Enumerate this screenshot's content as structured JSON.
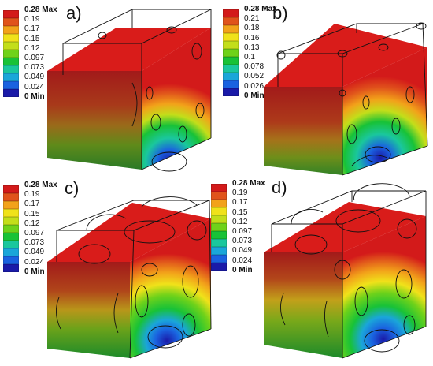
{
  "colors": {
    "top_face": "#d91c1a",
    "scale_colors": [
      "#d31a1a",
      "#e0531b",
      "#f2a21a",
      "#f0e21a",
      "#c3de1a",
      "#6fd21a",
      "#18c237",
      "#1ac79d",
      "#1aa6d9",
      "#1a62e0",
      "#1a1aa8"
    ]
  },
  "panels": [
    {
      "letter": "a)",
      "legend": {
        "max_label": "0.28 Max",
        "values": [
          "0.19",
          "0.17",
          "0.15",
          "0.12",
          "0.097",
          "0.073",
          "0.049",
          "0.024"
        ],
        "min_label": "0 Min"
      }
    },
    {
      "letter": "b)",
      "legend": {
        "max_label": "0.28 Max",
        "values": [
          "0.21",
          "0.18",
          "0.16",
          "0.13",
          "0.1",
          "0.078",
          "0.052",
          "0.026"
        ],
        "min_label": "0 Min"
      }
    },
    {
      "letter": "c)",
      "legend": {
        "max_label": "0.28 Max",
        "values": [
          "0.19",
          "0.17",
          "0.15",
          "0.12",
          "0.097",
          "0.073",
          "0.049",
          "0.024"
        ],
        "min_label": "0 Min"
      }
    },
    {
      "letter": "d)",
      "legend": {
        "max_label": "0.28 Max",
        "values": [
          "0.19",
          "0.17",
          "0.15",
          "0.12",
          "0.097",
          "0.073",
          "0.049",
          "0.024"
        ],
        "min_label": "0 Min"
      }
    }
  ]
}
